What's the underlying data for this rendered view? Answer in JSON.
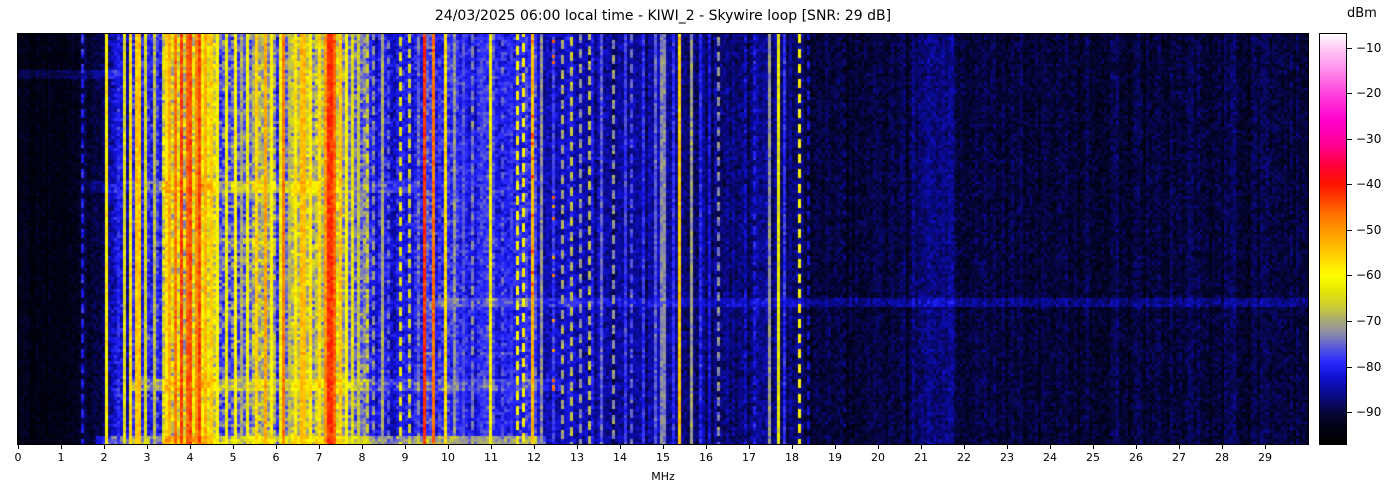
{
  "title": "24/03/2025 06:00 local time - KIWI_2 - Skywire loop [SNR: 29 dB]",
  "x_axis": {
    "label": "MHz",
    "range": [
      0,
      30
    ],
    "ticks": [
      "0",
      "1",
      "2",
      "3",
      "4",
      "5",
      "6",
      "7",
      "8",
      "9",
      "10",
      "11",
      "12",
      "13",
      "14",
      "15",
      "16",
      "17",
      "18",
      "19",
      "20",
      "21",
      "22",
      "23",
      "24",
      "25",
      "26",
      "27",
      "28",
      "29"
    ]
  },
  "colorbar": {
    "label": "dBm",
    "ticks": [
      {
        "value": -10,
        "label": "−10"
      },
      {
        "value": -20,
        "label": "−20"
      },
      {
        "value": -30,
        "label": "−30"
      },
      {
        "value": -40,
        "label": "−40"
      },
      {
        "value": -50,
        "label": "−50"
      },
      {
        "value": -60,
        "label": "−60"
      },
      {
        "value": -70,
        "label": "−70"
      },
      {
        "value": -80,
        "label": "−80"
      },
      {
        "value": -90,
        "label": "−90"
      }
    ]
  },
  "chart_data": {
    "type": "heatmap",
    "title": "24/03/2025 06:00 local time - KIWI_2 - Skywire loop [SNR: 29 dB]",
    "xlabel": "MHz",
    "ylabel": "",
    "x_range": [
      0,
      30
    ],
    "y_axis_note": "time (unlabeled waterfall rows)",
    "value_unit": "dBm",
    "vrange": [
      -97,
      -7
    ],
    "colorbar_ticks": [
      -10,
      -20,
      -30,
      -40,
      -50,
      -60,
      -70,
      -80,
      -90
    ],
    "legend_position": "right-colorbar",
    "grid": false,
    "colormap": [
      [
        -97,
        "#000000"
      ],
      [
        -93,
        "#020216"
      ],
      [
        -90,
        "#06063a"
      ],
      [
        -86,
        "#0a0a8e"
      ],
      [
        -82,
        "#1212d8"
      ],
      [
        -79,
        "#2a2aff"
      ],
      [
        -76,
        "#5555dd"
      ],
      [
        -73,
        "#8888ae"
      ],
      [
        -70,
        "#a8a878"
      ],
      [
        -67,
        "#caca38"
      ],
      [
        -63,
        "#e8e800"
      ],
      [
        -60,
        "#ffff00"
      ],
      [
        -56,
        "#ffd400"
      ],
      [
        -52,
        "#ffaa00"
      ],
      [
        -47,
        "#ff7700"
      ],
      [
        -43,
        "#ff3c00"
      ],
      [
        -40,
        "#ff1400"
      ],
      [
        -36,
        "#ff0036"
      ],
      [
        -31,
        "#ff0099"
      ],
      [
        -26,
        "#ff00cc"
      ],
      [
        -20,
        "#ff44dd"
      ],
      [
        -14,
        "#ff99ee"
      ],
      [
        -10,
        "#ffccf5"
      ],
      [
        -7,
        "#ffffff"
      ]
    ],
    "noise_bands": [
      [
        0.0,
        1.5,
        -93,
        2.5
      ],
      [
        1.5,
        2.1,
        -90,
        3
      ],
      [
        2.1,
        2.55,
        -84,
        5
      ],
      [
        2.55,
        3.35,
        -79,
        6
      ],
      [
        3.35,
        4.6,
        -65,
        9
      ],
      [
        4.6,
        5.4,
        -75,
        8
      ],
      [
        5.4,
        6.0,
        -70,
        8
      ],
      [
        6.0,
        6.35,
        -77,
        7
      ],
      [
        6.35,
        7.6,
        -68,
        8
      ],
      [
        7.6,
        8.15,
        -74,
        7
      ],
      [
        8.15,
        9.3,
        -81,
        5
      ],
      [
        9.3,
        10.15,
        -78,
        6
      ],
      [
        10.15,
        12.1,
        -80,
        5
      ],
      [
        12.1,
        13.7,
        -84,
        4.5
      ],
      [
        13.7,
        15.4,
        -86,
        4
      ],
      [
        15.4,
        18.3,
        -87,
        4
      ],
      [
        18.3,
        20.8,
        -90,
        3.5
      ],
      [
        20.8,
        21.8,
        -87,
        3.5
      ],
      [
        21.8,
        30.0,
        -90,
        3.5
      ]
    ],
    "signal_stripes": [
      {
        "f": 1.51,
        "w": 0.05,
        "d": -80,
        "dash": 1
      },
      {
        "f": 2.06,
        "w": 0.05,
        "d": -59
      },
      {
        "f": 2.33,
        "w": 0.06,
        "d": -80
      },
      {
        "f": 2.47,
        "w": 0.05,
        "d": -64
      },
      {
        "f": 2.62,
        "w": 0.08,
        "d": -57
      },
      {
        "f": 2.8,
        "w": 0.09,
        "d": -55
      },
      {
        "f": 2.95,
        "w": 0.05,
        "d": -65
      },
      {
        "f": 3.2,
        "w": 0.06,
        "d": -68
      },
      {
        "f": 3.42,
        "w": 0.06,
        "d": -58
      },
      {
        "f": 3.55,
        "w": 0.06,
        "d": -52
      },
      {
        "f": 3.68,
        "w": 0.07,
        "d": -47
      },
      {
        "f": 3.8,
        "w": 0.09,
        "d": -43
      },
      {
        "f": 3.92,
        "w": 0.07,
        "d": -46
      },
      {
        "f": 4.02,
        "w": 0.1,
        "d": -44
      },
      {
        "f": 4.15,
        "w": 0.07,
        "d": -49
      },
      {
        "f": 4.22,
        "w": 0.08,
        "d": -44
      },
      {
        "f": 4.35,
        "w": 0.06,
        "d": -53
      },
      {
        "f": 4.47,
        "w": 0.06,
        "d": -55
      },
      {
        "f": 4.65,
        "w": 0.06,
        "d": -60
      },
      {
        "f": 4.85,
        "w": 0.07,
        "d": -62
      },
      {
        "f": 5.06,
        "w": 0.05,
        "d": -60
      },
      {
        "f": 5.2,
        "w": 0.04,
        "d": -70
      },
      {
        "f": 5.35,
        "w": 0.05,
        "d": -62
      },
      {
        "f": 5.55,
        "w": 0.09,
        "d": -56
      },
      {
        "f": 5.75,
        "w": 0.09,
        "d": -52
      },
      {
        "f": 5.9,
        "w": 0.06,
        "d": -60
      },
      {
        "f": 6.07,
        "w": 0.05,
        "d": -62
      },
      {
        "f": 6.16,
        "w": 0.05,
        "d": -48
      },
      {
        "f": 6.3,
        "w": 0.05,
        "d": -68
      },
      {
        "f": 6.45,
        "w": 0.08,
        "d": -58
      },
      {
        "f": 6.62,
        "w": 0.09,
        "d": -54
      },
      {
        "f": 6.8,
        "w": 0.07,
        "d": -58
      },
      {
        "f": 7.0,
        "w": 0.06,
        "d": -57
      },
      {
        "f": 7.15,
        "w": 0.07,
        "d": -50
      },
      {
        "f": 7.25,
        "w": 0.09,
        "d": -42
      },
      {
        "f": 7.38,
        "w": 0.08,
        "d": -46
      },
      {
        "f": 7.5,
        "w": 0.07,
        "d": -55
      },
      {
        "f": 7.62,
        "w": 0.06,
        "d": -60
      },
      {
        "f": 7.78,
        "w": 0.08,
        "d": -64
      },
      {
        "f": 7.95,
        "w": 0.06,
        "d": -67
      },
      {
        "f": 8.1,
        "w": 0.05,
        "d": -66,
        "dash": 1
      },
      {
        "f": 8.3,
        "w": 0.04,
        "d": -72,
        "dash": 1
      },
      {
        "f": 8.46,
        "w": 0.04,
        "d": -70
      },
      {
        "f": 8.65,
        "w": 0.04,
        "d": -76,
        "dash": 1
      },
      {
        "f": 8.88,
        "w": 0.05,
        "d": -63,
        "dash": 1
      },
      {
        "f": 9.07,
        "w": 0.04,
        "d": -66,
        "dash": 1
      },
      {
        "f": 9.45,
        "w": 0.12,
        "d": -42
      },
      {
        "f": 9.66,
        "w": 0.07,
        "d": -47
      },
      {
        "f": 9.92,
        "w": 0.08,
        "d": -57
      },
      {
        "f": 10.12,
        "w": 0.04,
        "d": -72
      },
      {
        "f": 10.35,
        "w": 0.04,
        "d": -77
      },
      {
        "f": 10.55,
        "w": 0.04,
        "d": -73,
        "dash": 1
      },
      {
        "f": 10.75,
        "w": 0.04,
        "d": -78
      },
      {
        "f": 10.98,
        "w": 0.05,
        "d": -62
      },
      {
        "f": 11.25,
        "w": 0.04,
        "d": -76,
        "dash": 1
      },
      {
        "f": 11.45,
        "w": 0.04,
        "d": -79
      },
      {
        "f": 11.63,
        "w": 0.05,
        "d": -61,
        "dash": 1
      },
      {
        "f": 11.74,
        "w": 0.05,
        "d": -60,
        "dash": 1
      },
      {
        "f": 11.95,
        "w": 0.06,
        "d": -54
      },
      {
        "f": 11.95,
        "w": 0.05,
        "d": -44,
        "sp": 0.12
      },
      {
        "f": 12.15,
        "w": 0.04,
        "d": -72
      },
      {
        "f": 12.44,
        "w": 0.04,
        "d": -78
      },
      {
        "f": 12.44,
        "w": 0.04,
        "d": -48,
        "sp": 0.12
      },
      {
        "f": 12.65,
        "w": 0.04,
        "d": -70,
        "dash": 1
      },
      {
        "f": 12.85,
        "w": 0.04,
        "d": -68,
        "dash": 1
      },
      {
        "f": 13.05,
        "w": 0.04,
        "d": -72,
        "dash": 1
      },
      {
        "f": 13.3,
        "w": 0.04,
        "d": -68,
        "dash": 1
      },
      {
        "f": 13.55,
        "w": 0.04,
        "d": -76
      },
      {
        "f": 13.85,
        "w": 0.04,
        "d": -72,
        "dash": 1
      },
      {
        "f": 14.1,
        "w": 0.04,
        "d": -78
      },
      {
        "f": 14.3,
        "w": 0.04,
        "d": -76,
        "dash": 1
      },
      {
        "f": 14.55,
        "w": 0.04,
        "d": -79
      },
      {
        "f": 14.8,
        "w": 0.04,
        "d": -76
      },
      {
        "f": 15.0,
        "w": 0.05,
        "d": -73
      },
      {
        "f": 15.25,
        "w": 0.04,
        "d": -79
      },
      {
        "f": 15.4,
        "w": 0.07,
        "d": -55
      },
      {
        "f": 15.63,
        "w": 0.04,
        "d": -71
      },
      {
        "f": 15.85,
        "w": 0.04,
        "d": -80
      },
      {
        "f": 16.1,
        "w": 0.05,
        "d": -82
      },
      {
        "f": 16.31,
        "w": 0.05,
        "d": -73,
        "dash": 1
      },
      {
        "f": 16.95,
        "w": 0.04,
        "d": -83,
        "dash": 1
      },
      {
        "f": 17.14,
        "w": 0.04,
        "d": -81,
        "dash": 1
      },
      {
        "f": 17.5,
        "w": 0.05,
        "d": -72
      },
      {
        "f": 17.68,
        "w": 0.05,
        "d": -63
      },
      {
        "f": 17.85,
        "w": 0.04,
        "d": -79
      },
      {
        "f": 18.14,
        "w": 0.06,
        "d": -60,
        "dash": 1
      },
      {
        "f": 18.35,
        "w": 0.04,
        "d": -83,
        "dash": 1
      },
      {
        "f": 19.2,
        "w": 0.04,
        "d": -88,
        "dash": 1
      }
    ],
    "horizontal_enhancements": [
      {
        "y0": 0.085,
        "y1": 0.105,
        "f0": 0.0,
        "f1": 2.5,
        "boost": 4
      },
      {
        "y0": 0.355,
        "y1": 0.385,
        "f0": 1.6,
        "f1": 3.3,
        "boost": 3
      },
      {
        "y0": 0.355,
        "y1": 0.385,
        "f0": 3.3,
        "f1": 7.0,
        "boost": 8
      },
      {
        "y0": 0.355,
        "y1": 0.385,
        "f0": 7.0,
        "f1": 9.3,
        "boost": 3
      },
      {
        "y0": 0.49,
        "y1": 0.51,
        "f0": 3.3,
        "f1": 6.2,
        "boost": 4
      },
      {
        "y0": 0.64,
        "y1": 0.66,
        "f0": 9.5,
        "f1": 30.0,
        "boost": 4
      },
      {
        "y0": 0.835,
        "y1": 0.862,
        "f0": 2.6,
        "f1": 8.0,
        "boost": 7
      },
      {
        "y0": 0.835,
        "y1": 0.862,
        "f0": 8.0,
        "f1": 12.6,
        "boost": 4
      },
      {
        "y0": 0.975,
        "y1": 1.01,
        "f0": 1.8,
        "f1": 12.3,
        "boost": 9
      }
    ]
  }
}
